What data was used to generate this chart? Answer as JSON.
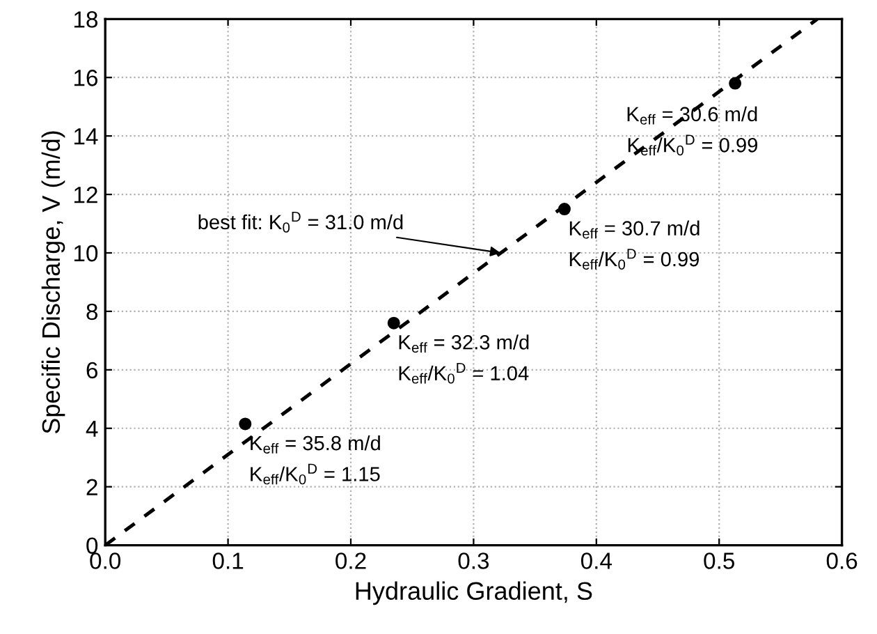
{
  "chart_data": {
    "type": "scatter",
    "xlabel": "Hydraulic Gradient, S",
    "ylabel": "Specific Discharge, V (m/d)",
    "xlim": [
      0,
      0.6
    ],
    "ylim": [
      0,
      18
    ],
    "xticks": [
      {
        "value": 0,
        "label": "0.0"
      },
      0.1,
      0.2,
      0.3,
      0.4,
      0.5,
      0.6
    ],
    "yticks": [
      0,
      2,
      4,
      6,
      8,
      10,
      12,
      14,
      16,
      18
    ],
    "grid": true,
    "series": [
      {
        "marker": "circle",
        "color": "#000000",
        "x": [
          0.114,
          0.235,
          0.374,
          0.513
        ],
        "values": [
          4.15,
          7.6,
          11.5,
          15.8
        ]
      },
      {
        "type": "line",
        "line_style": "dashed",
        "color": "#000000",
        "x": [
          0,
          0.58
        ],
        "values": [
          0,
          18
        ]
      }
    ],
    "annotations": [
      {
        "text": "K$_{eff}$ = 35.8 m/d",
        "x": 0.114,
        "y": 4.15
      },
      {
        "text": "K$_{eff}$/K$_{0}$$^{D}$ = 1.15",
        "x": 0.114,
        "y": 4.15
      },
      {
        "text": "K$_{eff}$ = 32.3 m/d",
        "x": 0.235,
        "y": 7.6
      },
      {
        "text": "K$_{eff}$/K$_{0}$$^{D}$ = 1.04",
        "x": 0.235,
        "y": 7.6
      },
      {
        "text": "K$_{eff}$ = 30.7 m/d",
        "x": 0.374,
        "y": 11.5
      },
      {
        "text": "K$_{eff}$/K$_{0}$$^{D}$ = 0.99",
        "x": 0.374,
        "y": 11.5
      },
      {
        "text": "K$_{eff}$ = 30.6 m/d",
        "x": 0.513,
        "y": 15.8
      },
      {
        "text": "K$_{eff}$/K$_{0}$$^{D}$ = 0.99",
        "x": 0.513,
        "y": 15.8
      },
      {
        "text": "best fit: K$_{0}$$^{D}$ = 31.0 m/d",
        "x": 0.322,
        "y": 10.0
      }
    ]
  }
}
